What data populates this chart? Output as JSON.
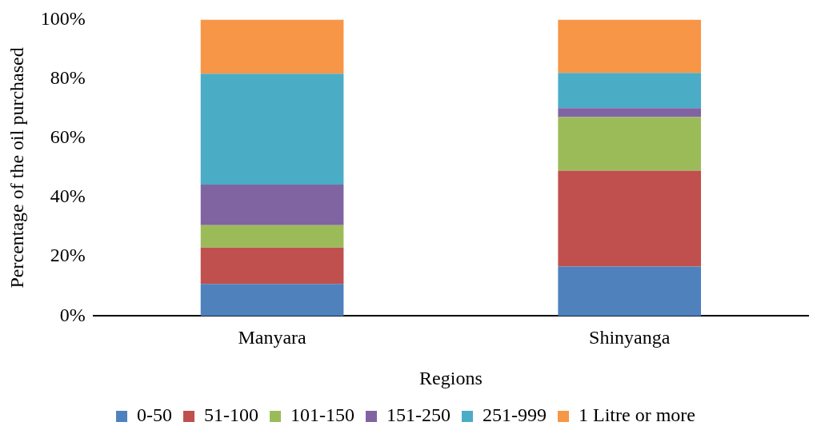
{
  "chart_data": {
    "type": "bar",
    "stacked": true,
    "xlabel": "Regions",
    "ylabel": "Percentage of the oil purchased",
    "categories": [
      "Manyara",
      "Shinyanga"
    ],
    "series": [
      {
        "name": "0-50",
        "color": "#4f81bd",
        "values": [
          10.8,
          16.7
        ]
      },
      {
        "name": "51-100",
        "color": "#c0504d",
        "values": [
          12.3,
          32.3
        ]
      },
      {
        "name": "101-150",
        "color": "#9bbb59",
        "values": [
          7.5,
          18.1
        ]
      },
      {
        "name": "151-250",
        "color": "#8064a2",
        "values": [
          13.7,
          3.0
        ]
      },
      {
        "name": "251-999",
        "color": "#4bacc6",
        "values": [
          37.4,
          11.9
        ]
      },
      {
        "name": "1 Litre or more",
        "color": "#f79646",
        "values": [
          18.3,
          18.0
        ]
      }
    ],
    "ylim": [
      0,
      100
    ],
    "yticks": [
      {
        "value": 0,
        "label": "0%"
      },
      {
        "value": 20,
        "label": "20%"
      },
      {
        "value": 40,
        "label": "40%"
      },
      {
        "value": 60,
        "label": "60%"
      },
      {
        "value": 80,
        "label": "80%"
      },
      {
        "value": 100,
        "label": "100%"
      }
    ],
    "grid": false,
    "legend": "bottom"
  }
}
